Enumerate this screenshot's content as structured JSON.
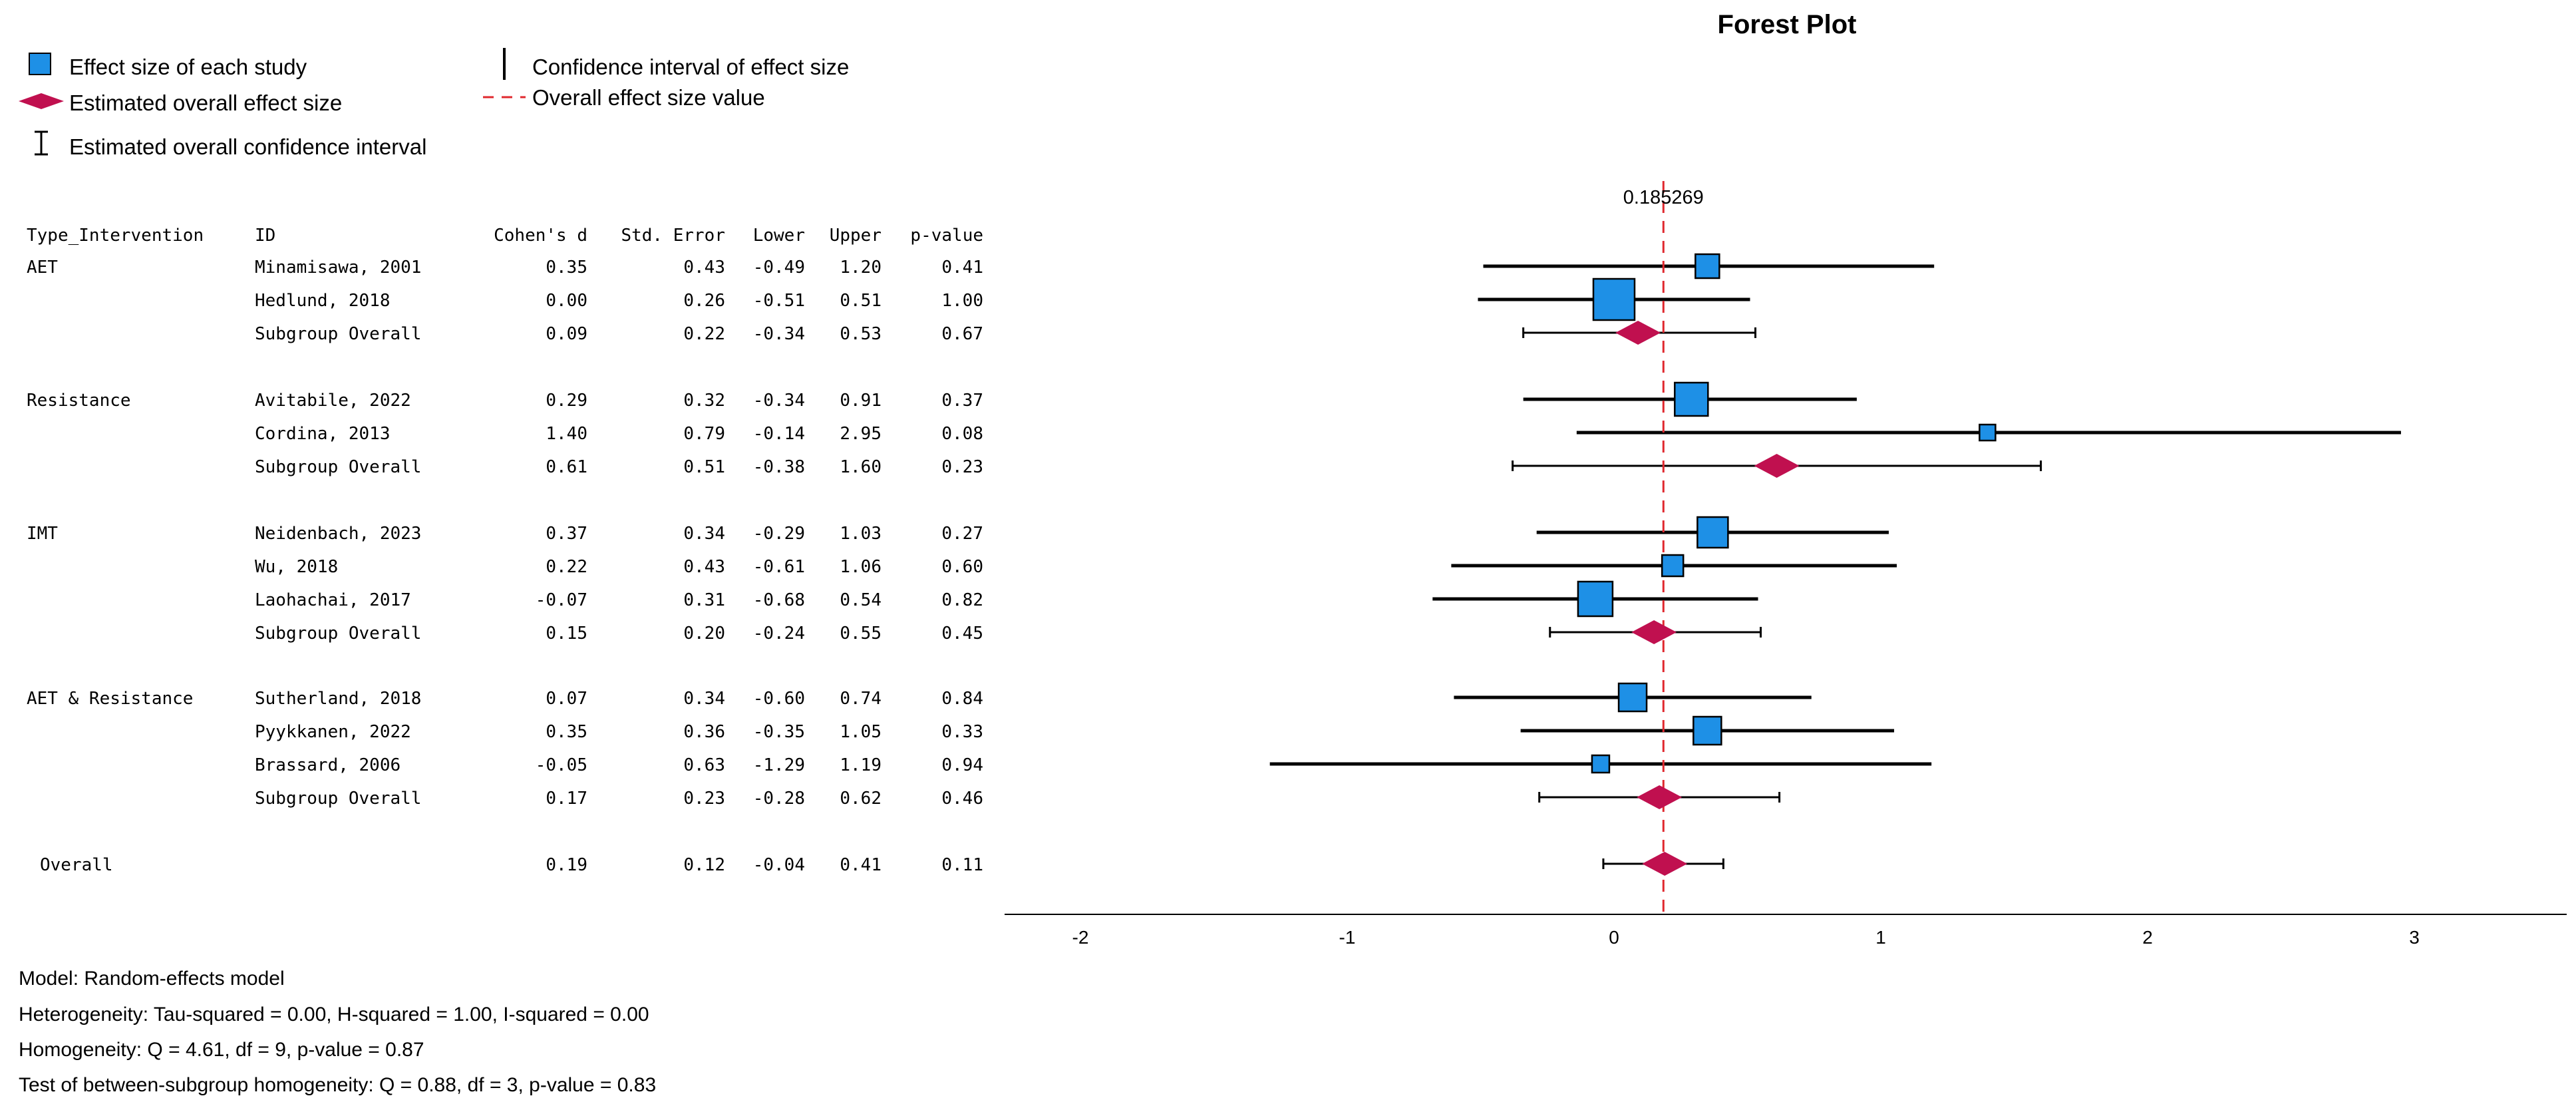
{
  "chart_data": {
    "type": "forest",
    "title": "Forest Plot",
    "legend": {
      "study_effect": "Effect size of each study",
      "overall_effect": "Estimated overall effect size",
      "overall_ci": "Estimated overall confidence interval",
      "study_ci": "Confidence interval of effect size",
      "overall_line": "Overall effect size value"
    },
    "columns": [
      "Type_Intervention",
      "ID",
      "Cohen's d",
      "Std. Error",
      "Lower",
      "Upper",
      "p-value"
    ],
    "rows": [
      {
        "kind": "study",
        "group": "AET",
        "id": "Minamisawa, 2001",
        "d": "0.35",
        "se": "0.43",
        "lower": "-0.49",
        "upper": "1.20",
        "p": "0.41",
        "dv": 0.35,
        "lv": -0.49,
        "uv": 1.2
      },
      {
        "kind": "study",
        "group": "",
        "id": "Hedlund, 2018",
        "d": "0.00",
        "se": "0.26",
        "lower": "-0.51",
        "upper": "0.51",
        "p": "1.00",
        "dv": 0.0,
        "lv": -0.51,
        "uv": 0.51
      },
      {
        "kind": "subgroup",
        "group": "",
        "id": "Subgroup Overall",
        "d": "0.09",
        "se": "0.22",
        "lower": "-0.34",
        "upper": "0.53",
        "p": "0.67",
        "dv": 0.09,
        "lv": -0.34,
        "uv": 0.53
      },
      {
        "kind": "study",
        "group": "Resistance",
        "id": "Avitabile, 2022",
        "d": "0.29",
        "se": "0.32",
        "lower": "-0.34",
        "upper": "0.91",
        "p": "0.37",
        "dv": 0.29,
        "lv": -0.34,
        "uv": 0.91
      },
      {
        "kind": "study",
        "group": "",
        "id": "Cordina, 2013",
        "d": "1.40",
        "se": "0.79",
        "lower": "-0.14",
        "upper": "2.95",
        "p": "0.08",
        "dv": 1.4,
        "lv": -0.14,
        "uv": 2.95
      },
      {
        "kind": "subgroup",
        "group": "",
        "id": "Subgroup Overall",
        "d": "0.61",
        "se": "0.51",
        "lower": "-0.38",
        "upper": "1.60",
        "p": "0.23",
        "dv": 0.61,
        "lv": -0.38,
        "uv": 1.6
      },
      {
        "kind": "study",
        "group": "IMT",
        "id": "Neidenbach, 2023",
        "d": "0.37",
        "se": "0.34",
        "lower": "-0.29",
        "upper": "1.03",
        "p": "0.27",
        "dv": 0.37,
        "lv": -0.29,
        "uv": 1.03
      },
      {
        "kind": "study",
        "group": "",
        "id": "Wu, 2018",
        "d": "0.22",
        "se": "0.43",
        "lower": "-0.61",
        "upper": "1.06",
        "p": "0.60",
        "dv": 0.22,
        "lv": -0.61,
        "uv": 1.06
      },
      {
        "kind": "study",
        "group": "",
        "id": "Laohachai, 2017",
        "d": "-0.07",
        "se": "0.31",
        "lower": "-0.68",
        "upper": "0.54",
        "p": "0.82",
        "dv": -0.07,
        "lv": -0.68,
        "uv": 0.54
      },
      {
        "kind": "subgroup",
        "group": "",
        "id": "Subgroup Overall",
        "d": "0.15",
        "se": "0.20",
        "lower": "-0.24",
        "upper": "0.55",
        "p": "0.45",
        "dv": 0.15,
        "lv": -0.24,
        "uv": 0.55
      },
      {
        "kind": "study",
        "group": "AET & Resistance",
        "id": "Sutherland, 2018",
        "d": "0.07",
        "se": "0.34",
        "lower": "-0.60",
        "upper": "0.74",
        "p": "0.84",
        "dv": 0.07,
        "lv": -0.6,
        "uv": 0.74
      },
      {
        "kind": "study",
        "group": "",
        "id": "Pyykkanen, 2022",
        "d": "0.35",
        "se": "0.36",
        "lower": "-0.35",
        "upper": "1.05",
        "p": "0.33",
        "dv": 0.35,
        "lv": -0.35,
        "uv": 1.05
      },
      {
        "kind": "study",
        "group": "",
        "id": "Brassard, 2006",
        "d": "-0.05",
        "se": "0.63",
        "lower": "-1.29",
        "upper": "1.19",
        "p": "0.94",
        "dv": -0.05,
        "lv": -1.29,
        "uv": 1.19
      },
      {
        "kind": "subgroup",
        "group": "",
        "id": "Subgroup Overall",
        "d": "0.17",
        "se": "0.23",
        "lower": "-0.28",
        "upper": "0.62",
        "p": "0.46",
        "dv": 0.17,
        "lv": -0.28,
        "uv": 0.62
      },
      {
        "kind": "overall",
        "group": "Overall",
        "id": "",
        "d": "0.19",
        "se": "0.12",
        "lower": "-0.04",
        "upper": "0.41",
        "p": "0.11",
        "dv": 0.19,
        "lv": -0.04,
        "uv": 0.41
      }
    ],
    "overall_value": 0.185269,
    "overall_value_label": "0.185269",
    "x_ticks": [
      -2,
      -1,
      0,
      1,
      2,
      3
    ],
    "xlim": [
      -2.3,
      3.55
    ],
    "footnotes": [
      "Model: Random-effects model",
      "Heterogeneity: Tau-squared = 0.00, H-squared = 1.00, I-squared = 0.00",
      "Homogeneity: Q = 4.61, df = 9, p-value = 0.87",
      "Test of between-subgroup homogeneity: Q = 0.88, df = 3, p-value = 0.83"
    ],
    "colors": {
      "study_marker": "#1E90E6",
      "diamond": "#C0104F",
      "ref_line": "#E0282E",
      "line": "#000000"
    }
  }
}
